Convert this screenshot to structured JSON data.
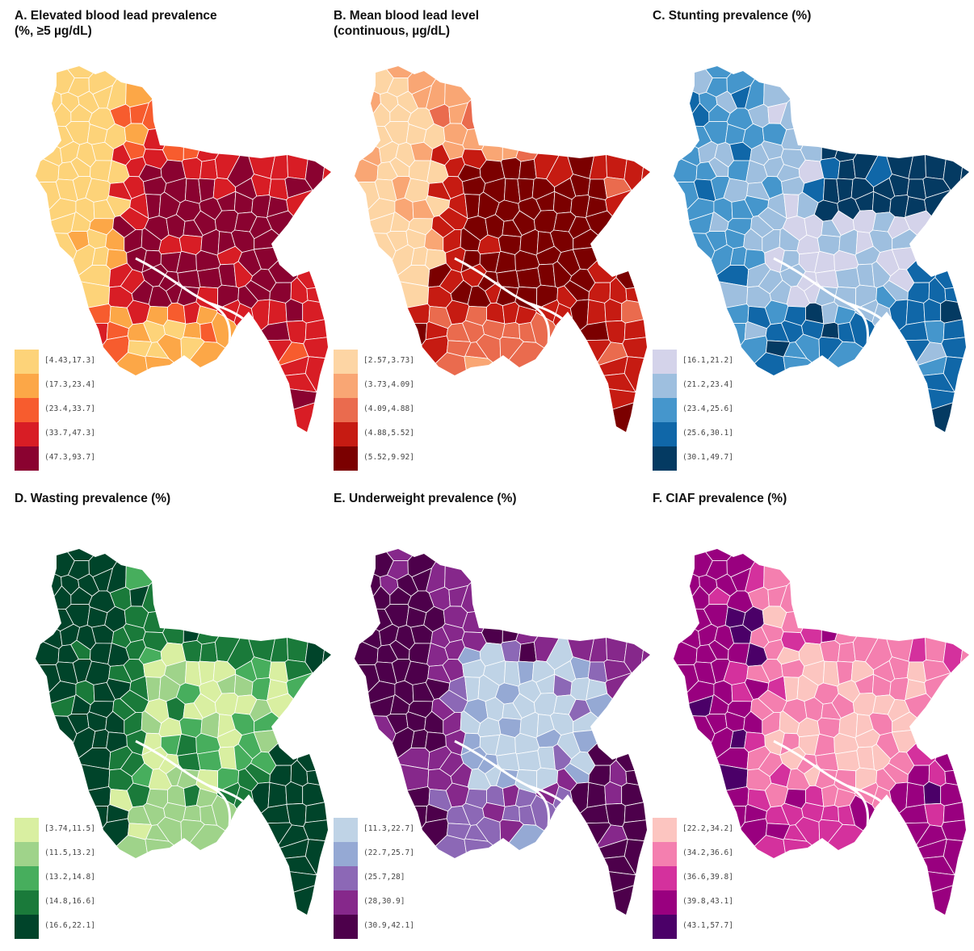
{
  "panels": [
    {
      "title_lines": [
        "A. Elevated blood lead prevalence",
        "(%, ≥5 µg/dL)"
      ],
      "legend": [
        {
          "label": "[4.43,17.3]",
          "color": "#fdd379"
        },
        {
          "label": "(17.3,23.4]",
          "color": "#fca747"
        },
        {
          "label": "(23.4,33.7]",
          "color": "#f75c2e"
        },
        {
          "label": "(33.7,47.3]",
          "color": "#d81d25"
        },
        {
          "label": "(47.3,93.7]",
          "color": "#8a0230"
        }
      ]
    },
    {
      "title_lines": [
        "B. Mean blood lead level",
        "(continuous, µg/dL)"
      ],
      "legend": [
        {
          "label": "[2.57,3.73]",
          "color": "#fdd5a4"
        },
        {
          "label": "(3.73,4.09]",
          "color": "#f9a674"
        },
        {
          "label": "(4.09,4.88]",
          "color": "#ea6b4e"
        },
        {
          "label": "(4.88,5.52]",
          "color": "#c61b12"
        },
        {
          "label": "(5.52,9.92]",
          "color": "#7b0000"
        }
      ]
    },
    {
      "title_lines": [
        "C. Stunting prevalence (%)"
      ],
      "legend": [
        {
          "label": "[16.1,21.2]",
          "color": "#d4d3ea"
        },
        {
          "label": "(21.2,23.4]",
          "color": "#9ebfdf"
        },
        {
          "label": "(23.4,25.6]",
          "color": "#4596cc"
        },
        {
          "label": "(25.6,30.1]",
          "color": "#1067a8"
        },
        {
          "label": "(30.1,49.7]",
          "color": "#043a62"
        }
      ]
    },
    {
      "title_lines": [
        "D. Wasting prevalence (%)"
      ],
      "legend": [
        {
          "label": "[3.74,11.5]",
          "color": "#d9efa1"
        },
        {
          "label": "(11.5,13.2]",
          "color": "#9fd38a"
        },
        {
          "label": "(13.2,14.8]",
          "color": "#47ae5d"
        },
        {
          "label": "(14.8,16.6]",
          "color": "#1a7a3a"
        },
        {
          "label": "(16.6,22.1]",
          "color": "#00442a"
        }
      ]
    },
    {
      "title_lines": [
        "E. Underweight prevalence (%)"
      ],
      "legend": [
        {
          "label": "[11.3,22.7]",
          "color": "#bfd3e6"
        },
        {
          "label": "(22.7,25.7]",
          "color": "#95a9d4"
        },
        {
          "label": "(25.7,28]",
          "color": "#8c68b6"
        },
        {
          "label": "(28,30.9]",
          "color": "#86288b"
        },
        {
          "label": "(30.9,42.1]",
          "color": "#4d004b"
        }
      ]
    },
    {
      "title_lines": [
        "F. CIAF prevalence (%)"
      ],
      "legend": [
        {
          "label": "[22.2,34.2]",
          "color": "#fcc5c0"
        },
        {
          "label": "(34.2,36.6]",
          "color": "#f47faf"
        },
        {
          "label": "(36.6,39.8]",
          "color": "#d4319d"
        },
        {
          "label": "(39.8,43.1]",
          "color": "#99007f"
        },
        {
          "label": "(43.1,57.7]",
          "color": "#4b0068"
        }
      ]
    }
  ]
}
